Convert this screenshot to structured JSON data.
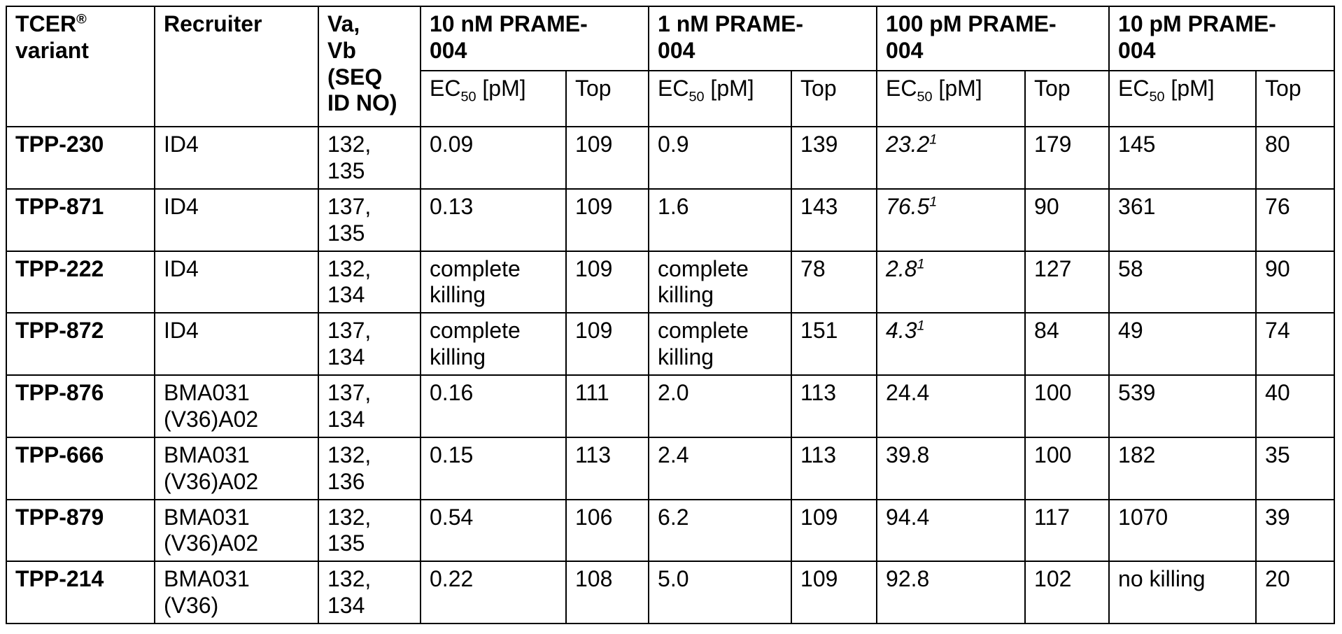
{
  "header": {
    "tcer_label": "TCER",
    "tcer_reg": "®",
    "tcer_label2": "variant",
    "recruiter": "Recruiter",
    "vavb_line1": "Va,",
    "vavb_line2": "Vb",
    "vavb_line3": "(SEQ",
    "vavb_line4": "ID NO)",
    "groups": [
      {
        "line1": "10 nM PRAME-",
        "line2": "004"
      },
      {
        "line1": "1 nM PRAME-",
        "line2": "004"
      },
      {
        "line1": "100 pM PRAME-",
        "line2": "004"
      },
      {
        "line1": "10 pM PRAME-",
        "line2": "004"
      }
    ],
    "ec_prefix": "EC",
    "ec_sub": "50",
    "ec_suffix": " [pM]",
    "top": "Top"
  },
  "rows": [
    {
      "variant": "TPP-230",
      "recruiter_l1": "ID4",
      "recruiter_l2": "",
      "seq_l1": "132,",
      "seq_l2": "135",
      "c10_ec_l1": "0.09",
      "c10_ec_l2": "",
      "c10_top": "109",
      "c1_ec_l1": "0.9",
      "c1_ec_l2": "",
      "c1_top": "139",
      "c100_ec": "23.2",
      "c100_fn": "1",
      "c100_top": "179",
      "c10p_ec": "145",
      "c10p_top": "80"
    },
    {
      "variant": "TPP-871",
      "recruiter_l1": "ID4",
      "recruiter_l2": "",
      "seq_l1": "137,",
      "seq_l2": "135",
      "c10_ec_l1": "0.13",
      "c10_ec_l2": "",
      "c10_top": "109",
      "c1_ec_l1": "1.6",
      "c1_ec_l2": "",
      "c1_top": "143",
      "c100_ec": "76.5",
      "c100_fn": "1",
      "c100_top": "90",
      "c10p_ec": "361",
      "c10p_top": "76"
    },
    {
      "variant": "TPP-222",
      "recruiter_l1": "ID4",
      "recruiter_l2": "",
      "seq_l1": "132,",
      "seq_l2": "134",
      "c10_ec_l1": "complete",
      "c10_ec_l2": "killing",
      "c10_top": "109",
      "c1_ec_l1": "complete",
      "c1_ec_l2": "killing",
      "c1_top": "78",
      "c100_ec": "2.8",
      "c100_fn": "1",
      "c100_top": "127",
      "c10p_ec": "58",
      "c10p_top": "90"
    },
    {
      "variant": "TPP-872",
      "recruiter_l1": "ID4",
      "recruiter_l2": "",
      "seq_l1": "137,",
      "seq_l2": "134",
      "c10_ec_l1": "complete",
      "c10_ec_l2": "killing",
      "c10_top": "109",
      "c1_ec_l1": "complete",
      "c1_ec_l2": "killing",
      "c1_top": "151",
      "c100_ec": "4.3",
      "c100_fn": "1",
      "c100_top": "84",
      "c10p_ec": "49",
      "c10p_top": "74"
    },
    {
      "variant": "TPP-876",
      "recruiter_l1": "BMA031",
      "recruiter_l2": "(V36)A02",
      "seq_l1": "137,",
      "seq_l2": "134",
      "c10_ec_l1": "0.16",
      "c10_ec_l2": "",
      "c10_top": "111",
      "c1_ec_l1": "2.0",
      "c1_ec_l2": "",
      "c1_top": "113",
      "c100_ec": "24.4",
      "c100_fn": "",
      "c100_top": "100",
      "c10p_ec": "539",
      "c10p_top": "40"
    },
    {
      "variant": "TPP-666",
      "recruiter_l1": "BMA031",
      "recruiter_l2": "(V36)A02",
      "seq_l1": "132,",
      "seq_l2": "136",
      "c10_ec_l1": "0.15",
      "c10_ec_l2": "",
      "c10_top": "113",
      "c1_ec_l1": "2.4",
      "c1_ec_l2": "",
      "c1_top": "113",
      "c100_ec": "39.8",
      "c100_fn": "",
      "c100_top": "100",
      "c10p_ec": "182",
      "c10p_top": "35"
    },
    {
      "variant": "TPP-879",
      "recruiter_l1": "BMA031",
      "recruiter_l2": "(V36)A02",
      "seq_l1": "132,",
      "seq_l2": "135",
      "c10_ec_l1": "0.54",
      "c10_ec_l2": "",
      "c10_top": "106",
      "c1_ec_l1": "6.2",
      "c1_ec_l2": "",
      "c1_top": "109",
      "c100_ec": "94.4",
      "c100_fn": "",
      "c100_top": "117",
      "c10p_ec": "1070",
      "c10p_top": "39"
    },
    {
      "variant": "TPP-214",
      "recruiter_l1": "BMA031",
      "recruiter_l2": "(V36)",
      "seq_l1": "132,",
      "seq_l2": "134",
      "c10_ec_l1": "0.22",
      "c10_ec_l2": "",
      "c10_top": "108",
      "c1_ec_l1": "5.0",
      "c1_ec_l2": "",
      "c1_top": "109",
      "c100_ec": "92.8",
      "c100_fn": "",
      "c100_top": "102",
      "c10p_ec": "no killing",
      "c10p_top": "20"
    }
  ]
}
